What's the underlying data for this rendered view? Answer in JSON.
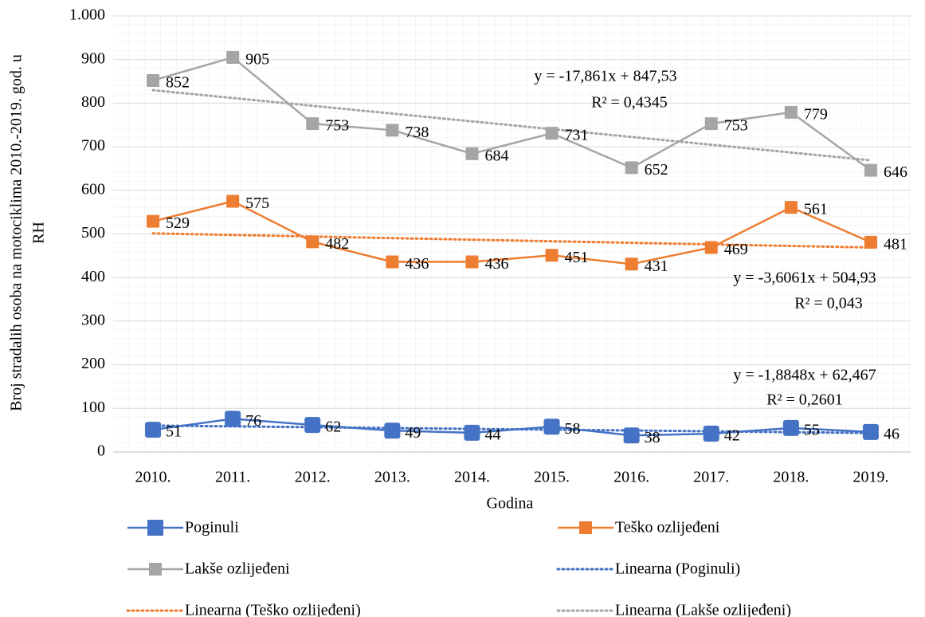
{
  "chart_data": {
    "type": "line",
    "xlabel": "Godina",
    "ylabel": [
      "Broj stradalih osoba na motociklima 2010.-2019. god. u",
      "RH"
    ],
    "categories": [
      "2010.",
      "2011.",
      "2012.",
      "2013.",
      "2014.",
      "2015.",
      "2016.",
      "2017.",
      "2018.",
      "2019."
    ],
    "series": [
      {
        "name": "Poginuli",
        "color": "#4472c4",
        "values": [
          51,
          76,
          62,
          49,
          44,
          58,
          38,
          42,
          55,
          46
        ]
      },
      {
        "name": "Teško ozlijeđeni",
        "color": "#ed7d31",
        "values": [
          529,
          575,
          482,
          436,
          436,
          451,
          431,
          469,
          561,
          481
        ]
      },
      {
        "name": "Lakše ozlijeđeni",
        "color": "#a5a5a5",
        "values": [
          852,
          905,
          753,
          738,
          684,
          731,
          652,
          753,
          779,
          646
        ]
      },
      {
        "name": "Linearna (Poginuli)",
        "color": "#4472c4",
        "trend": true,
        "values": [
          60.6,
          58.7,
          56.8,
          54.9,
          53.0,
          51.2,
          49.3,
          47.4,
          45.5,
          43.6
        ]
      },
      {
        "name": "Linearna (Teško ozlijeđeni)",
        "color": "#ed7d31",
        "trend": true,
        "values": [
          501.3,
          497.7,
          494.1,
          490.5,
          486.9,
          483.3,
          479.7,
          476.1,
          472.5,
          468.9
        ]
      },
      {
        "name": "Linearna (Lakše ozlijeđeni)",
        "color": "#a5a5a5",
        "trend": true,
        "values": [
          829.7,
          811.8,
          793.9,
          776.1,
          758.2,
          740.4,
          722.5,
          704.6,
          686.8,
          668.9
        ]
      }
    ],
    "annotations": [
      "y = -17,861x + 847,53",
      "R² = 0,4345",
      "y = -3,6061x + 504,93",
      "R² = 0,043",
      "y = -1,8848x + 62,467",
      "R² = 0,2601"
    ],
    "ylim": [
      0,
      1000
    ],
    "yticks": [
      0,
      100,
      200,
      300,
      400,
      500,
      600,
      700,
      800,
      900,
      {
        "value": 1000,
        "label": "1.000"
      }
    ],
    "grid": true
  }
}
